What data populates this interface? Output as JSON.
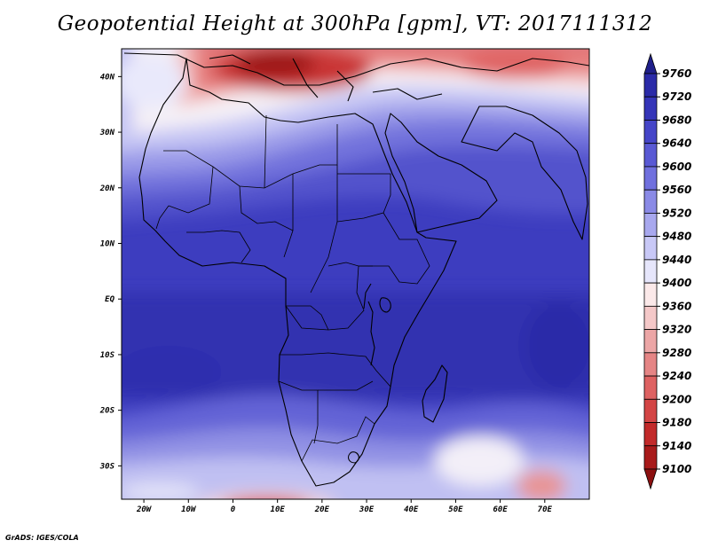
{
  "title": "Geopotential Height at 300hPa [gpm], VT: 2017111312",
  "credit": "GrADS: IGES/COLA",
  "map": {
    "lon_range": [
      -25,
      80
    ],
    "lat_range": [
      -36,
      45
    ],
    "lat_ticks": [
      {
        "value": 40,
        "label": "40N"
      },
      {
        "value": 30,
        "label": "30N"
      },
      {
        "value": 20,
        "label": "20N"
      },
      {
        "value": 10,
        "label": "10N"
      },
      {
        "value": 0,
        "label": "EQ"
      },
      {
        "value": -10,
        "label": "10S"
      },
      {
        "value": -20,
        "label": "20S"
      },
      {
        "value": -30,
        "label": "30S"
      }
    ],
    "lon_ticks": [
      {
        "value": -20,
        "label": "20W"
      },
      {
        "value": -10,
        "label": "10W"
      },
      {
        "value": 0,
        "label": "0"
      },
      {
        "value": 10,
        "label": "10E"
      },
      {
        "value": 20,
        "label": "20E"
      },
      {
        "value": 30,
        "label": "30E"
      },
      {
        "value": 40,
        "label": "40E"
      },
      {
        "value": 50,
        "label": "50E"
      },
      {
        "value": 60,
        "label": "60E"
      },
      {
        "value": 70,
        "label": "70E"
      }
    ]
  },
  "colorbar": {
    "labels": [
      "9760",
      "9720",
      "9680",
      "9640",
      "9600",
      "9560",
      "9520",
      "9480",
      "9440",
      "9400",
      "9360",
      "9320",
      "9280",
      "9240",
      "9200",
      "9180",
      "9140",
      "9100"
    ],
    "colors": [
      "#1f1f8a",
      "#2b2ba8",
      "#3535b8",
      "#4545c8",
      "#5959d4",
      "#7070de",
      "#8a8ae6",
      "#a8a8ee",
      "#c8c8f6",
      "#e6e6fb",
      "#fbe9e9",
      "#f4c8c8",
      "#eca6a6",
      "#e58585",
      "#de6262",
      "#d34545",
      "#c22a2a",
      "#a81a1a",
      "#8c1010"
    ]
  }
}
